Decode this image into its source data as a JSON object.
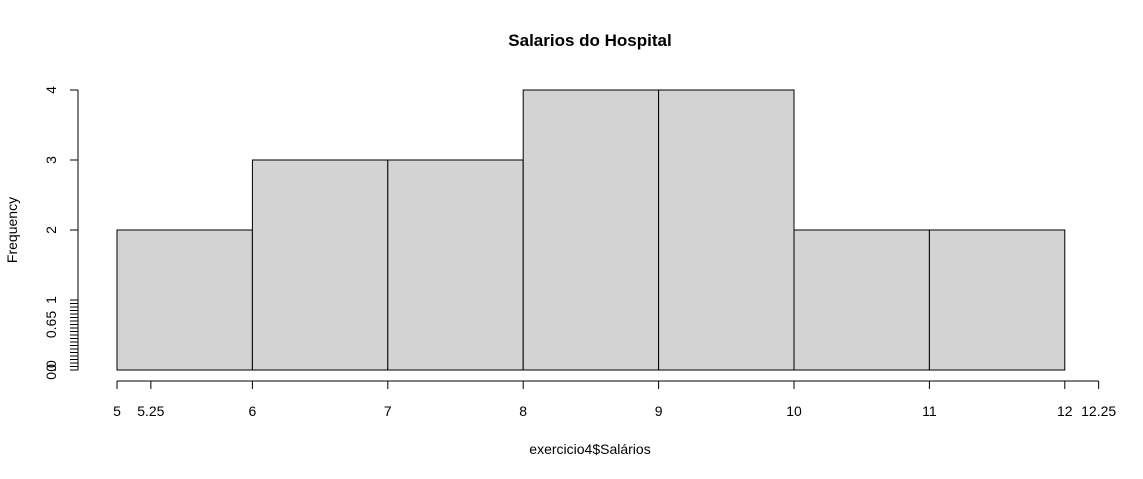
{
  "chart_data": {
    "type": "bar",
    "title": "Salarios do Hospital",
    "xlabel": "exercicio4$Salários",
    "ylabel": "Frequency",
    "bin_edges": [
      5,
      6,
      7,
      8,
      9,
      10,
      11,
      12
    ],
    "values": [
      2,
      3,
      3,
      4,
      4,
      2,
      2
    ],
    "bar_color": "#d3d3d3",
    "edge_color": "#000000",
    "xlim": [
      4.7,
      12.25
    ],
    "ylim": [
      0,
      4
    ],
    "x_ticks": [
      5,
      5.25,
      6,
      7,
      8,
      9,
      10,
      11,
      12,
      12.25
    ],
    "x_tick_labels": [
      "5",
      "5.25",
      "6",
      "7",
      "8",
      "9",
      "10",
      "11",
      "12",
      "12.25"
    ],
    "y_ticks": [
      0,
      0.05,
      0.1,
      0.15,
      0.2,
      0.25,
      0.3,
      0.35,
      0.4,
      0.45,
      0.5,
      0.55,
      0.6,
      0.65,
      0.7,
      0.75,
      0.8,
      0.85,
      0.9,
      0.95,
      1,
      2,
      3,
      4
    ],
    "y_tick_labels": [
      {
        "value": 0,
        "label": "0.0"
      },
      {
        "value": 0.03,
        "label": "0"
      },
      {
        "value": 0.65,
        "label": "0.65"
      },
      {
        "value": 1,
        "label": "1"
      },
      {
        "value": 2,
        "label": "2"
      },
      {
        "value": 3,
        "label": "3"
      },
      {
        "value": 4,
        "label": "4"
      }
    ],
    "grid": false,
    "legend": "none"
  }
}
